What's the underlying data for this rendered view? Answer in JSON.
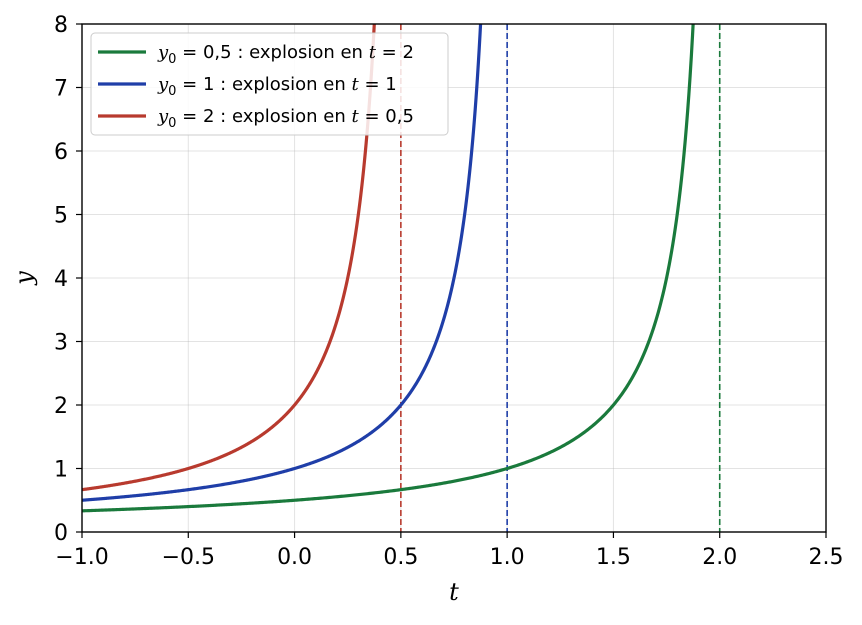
{
  "chart_data": {
    "type": "line",
    "xlabel": "t",
    "ylabel": "y",
    "xlim": [
      -1.0,
      2.5
    ],
    "ylim": [
      0,
      8
    ],
    "grid": true,
    "legend_position": "top-left",
    "x_ticks": [
      -1.0,
      -0.5,
      0.0,
      0.5,
      1.0,
      1.5,
      2.0,
      2.5
    ],
    "x_tick_labels": [
      "−1.0",
      "−0.5",
      "0.0",
      "0.5",
      "1.0",
      "1.5",
      "2.0",
      "2.5"
    ],
    "y_ticks": [
      0,
      1,
      2,
      3,
      4,
      5,
      6,
      7,
      8
    ],
    "y_tick_labels": [
      "0",
      "1",
      "2",
      "3",
      "4",
      "5",
      "6",
      "7",
      "8"
    ],
    "series": [
      {
        "name": "y₀ = 0,5 : explosion en t = 2",
        "legend_math": "y",
        "legend_sub": "0",
        "legend_eq": " = 0,5 : explosion en ",
        "legend_t": "t",
        "legend_tail": " = 2",
        "y0": 0.5,
        "blowup_t": 2.0,
        "color": "#1a7a3c",
        "x": [
          -1.0,
          -0.5,
          0.0,
          0.5,
          1.0,
          1.25,
          1.5,
          1.6,
          1.7,
          1.75,
          1.8,
          1.85,
          1.875
        ],
        "y": [
          0.333,
          0.4,
          0.5,
          0.667,
          1.0,
          1.333,
          2.0,
          2.5,
          3.333,
          4.0,
          5.0,
          6.667,
          8.0
        ]
      },
      {
        "name": "y₀ = 1 : explosion en t = 1",
        "legend_math": "y",
        "legend_sub": "0",
        "legend_eq": " = 1 : explosion en ",
        "legend_t": "t",
        "legend_tail": " = 1",
        "y0": 1.0,
        "blowup_t": 1.0,
        "color": "#1f3ea8",
        "x": [
          -1.0,
          -0.5,
          0.0,
          0.25,
          0.5,
          0.6,
          0.7,
          0.75,
          0.8,
          0.85,
          0.875
        ],
        "y": [
          0.5,
          0.667,
          1.0,
          1.333,
          2.0,
          2.5,
          3.333,
          4.0,
          5.0,
          6.667,
          8.0
        ]
      },
      {
        "name": "y₀ = 2 : explosion en t = 0,5",
        "legend_math": "y",
        "legend_sub": "0",
        "legend_eq": " = 2 : explosion en ",
        "legend_t": "t",
        "legend_tail": " = 0,5",
        "y0": 2.0,
        "blowup_t": 0.5,
        "color": "#b83a2e",
        "x": [
          -1.0,
          -0.5,
          0.0,
          0.1,
          0.2,
          0.25,
          0.3,
          0.35,
          0.375
        ],
        "y": [
          0.667,
          1.0,
          2.0,
          2.5,
          3.333,
          4.0,
          5.0,
          6.667,
          8.0
        ]
      }
    ],
    "vertical_lines": [
      {
        "x": 0.5,
        "color": "#b83a2e",
        "style": "dashed"
      },
      {
        "x": 1.0,
        "color": "#1f3ea8",
        "style": "dashed"
      },
      {
        "x": 2.0,
        "color": "#1a7a3c",
        "style": "dashed"
      }
    ]
  }
}
